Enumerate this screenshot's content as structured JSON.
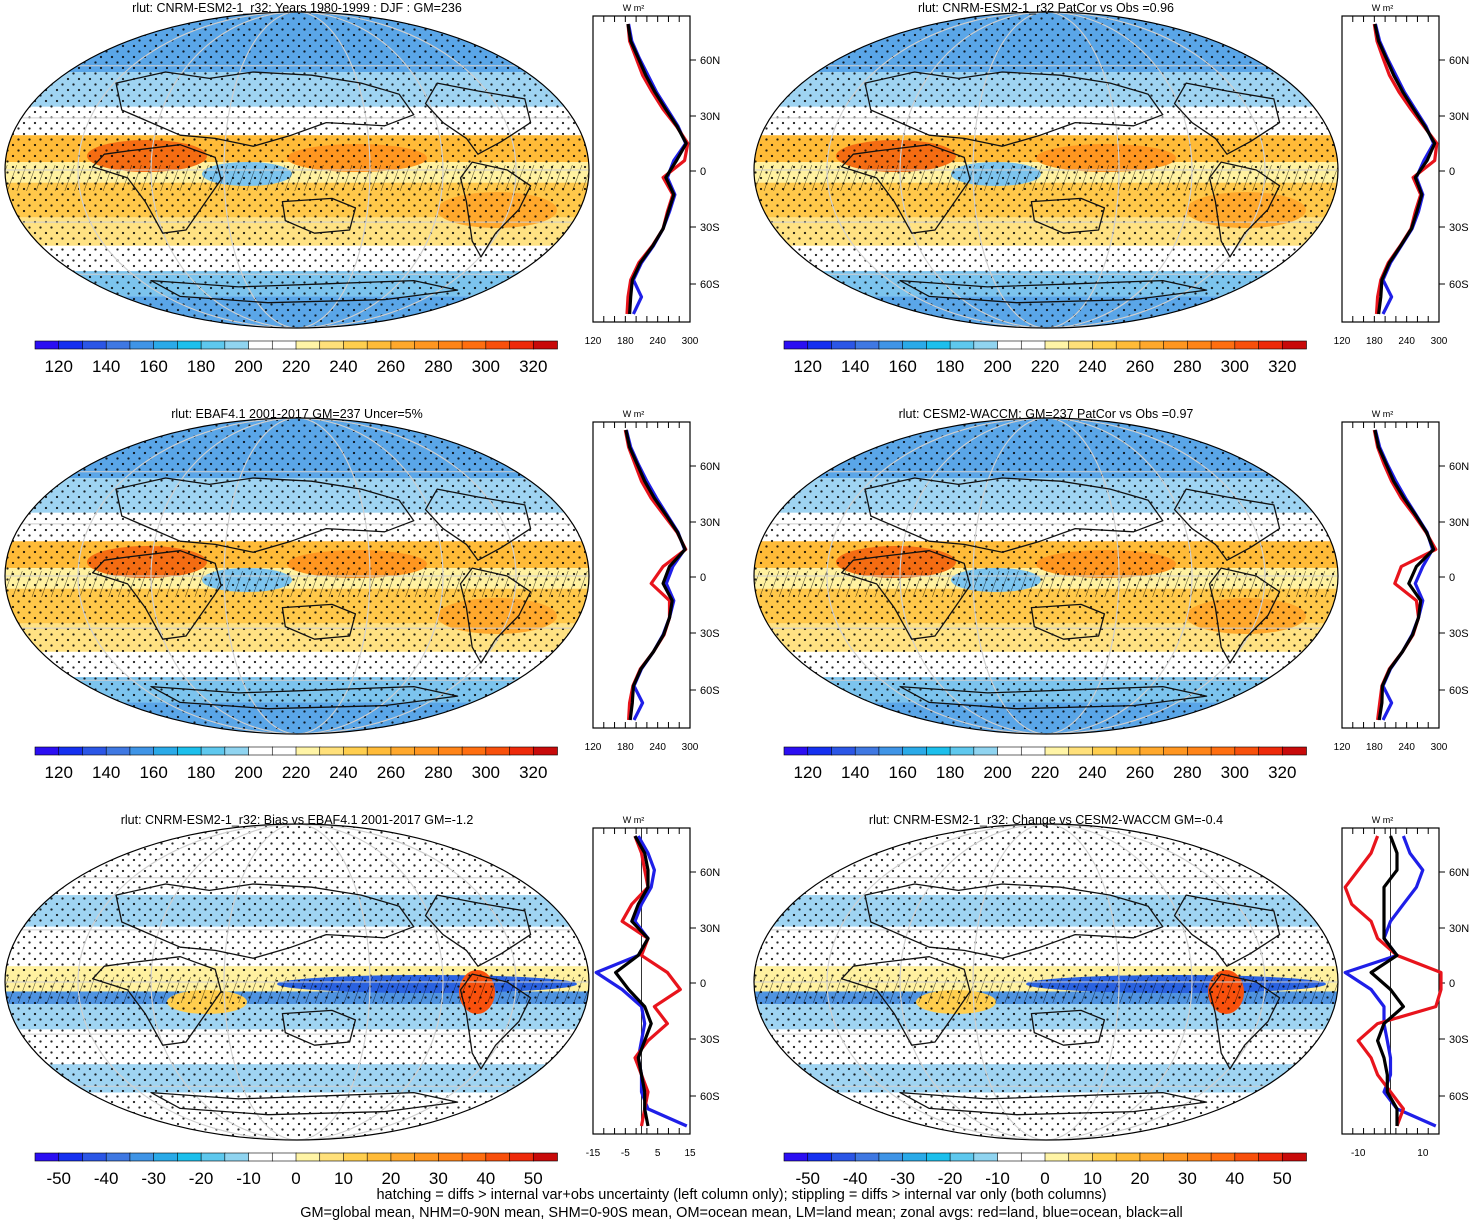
{
  "footer": {
    "line1": "hatching = diffs > internal var+obs uncertainty (left column only); stippling = diffs > internal var only (both columns)",
    "line2": "GM=global mean, NHM=0-90N mean, SHM=0-90S mean, OM=ocean mean, LM=land mean; zonal avgs: red=land, blue=ocean, black=all"
  },
  "units_label": "W m²",
  "lat_ticks": [
    "60N",
    "30N",
    "0",
    "30S",
    "60S"
  ],
  "colors": {
    "land": "#e8141c",
    "ocean": "#1f1fe8",
    "all": "#000000",
    "stipple": "#000000",
    "coast": "#111111"
  },
  "abs_palette": [
    "#2b0ef2",
    "#1530f0",
    "#2b56e6",
    "#3f78e2",
    "#3f94e6",
    "#2aaae8",
    "#1cbfec",
    "#5ec8ee",
    "#90d4f0",
    "#ffffff",
    "#ffffff",
    "#fff4a6",
    "#ffe07a",
    "#ffce4e",
    "#ffbb38",
    "#ffa82c",
    "#ff9620",
    "#ff8418",
    "#ff6e10",
    "#f8500c",
    "#ee2a0a",
    "#c80a0a"
  ],
  "diff_palette": [
    "#2b0ef2",
    "#1530f0",
    "#2b56e6",
    "#3f78e2",
    "#3f94e6",
    "#2aaae8",
    "#1cbfec",
    "#5ec8ee",
    "#90d4f0",
    "#ffffff",
    "#ffffff",
    "#fff4a6",
    "#ffe07a",
    "#ffce4e",
    "#ffbb38",
    "#ffa82c",
    "#ff9620",
    "#ff8418",
    "#ff6e10",
    "#f8500c",
    "#ee2a0a",
    "#c80a0a"
  ],
  "chart_data": [
    {
      "type": "map",
      "title": "rlut: CNRM-ESM2-1_r32: Years 1980-1999 : DJF : GM=236",
      "kind": "abs",
      "colorbar_labels": [
        "120",
        "140",
        "160",
        "180",
        "200",
        "220",
        "240",
        "260",
        "280",
        "300",
        "320"
      ],
      "zonal": {
        "type": "line",
        "xticks": [
          "120",
          "180",
          "240",
          "300"
        ],
        "xlim": [
          120,
          300
        ],
        "series": [
          {
            "name": "land",
            "values": [
              185,
              188,
              200,
              212,
              230,
              250,
              275,
              296,
              290,
              250,
              268,
              258,
              250,
              230,
              205,
              190,
              185,
              183
            ]
          },
          {
            "name": "ocean",
            "values": [
              186,
              192,
              206,
              222,
              238,
              258,
              278,
              292,
              270,
              258,
              272,
              262,
              250,
              232,
              210,
              195,
              210,
              195
            ]
          },
          {
            "name": "all",
            "values": [
              185,
              190,
              204,
              218,
              235,
              255,
              276,
              293,
              275,
              255,
              270,
              260,
              250,
              231,
              208,
              193,
              190,
              188
            ]
          }
        ]
      }
    },
    {
      "type": "map",
      "title": "rlut: CNRM-ESM2-1_r32 PatCor vs Obs =0.96",
      "kind": "abs",
      "colorbar_labels": [
        "120",
        "140",
        "160",
        "180",
        "200",
        "220",
        "240",
        "260",
        "280",
        "300",
        "320"
      ],
      "zonal": {
        "type": "line",
        "xticks": [
          "120",
          "180",
          "240",
          "300"
        ],
        "xlim": [
          120,
          300
        ],
        "series": [
          {
            "name": "land",
            "values": [
              180,
              185,
              196,
              208,
              226,
              248,
              272,
              296,
              292,
              252,
              266,
              256,
              248,
              228,
              206,
              192,
              186,
              184
            ]
          },
          {
            "name": "ocean",
            "values": [
              182,
              190,
              204,
              220,
              236,
              256,
              276,
              290,
              272,
              258,
              270,
              262,
              250,
              230,
              210,
              196,
              212,
              196
            ]
          },
          {
            "name": "all",
            "values": [
              181,
              188,
              202,
              216,
              233,
              253,
              274,
              292,
              278,
              256,
              268,
              259,
              249,
              229,
              208,
              194,
              192,
              188
            ]
          }
        ]
      }
    },
    {
      "type": "map",
      "title": "rlut: EBAF4.1 2001-2017 GM=237 Uncer=5%",
      "kind": "abs",
      "colorbar_labels": [
        "120",
        "140",
        "160",
        "180",
        "200",
        "220",
        "240",
        "260",
        "280",
        "300",
        "320"
      ],
      "zonal": {
        "type": "line",
        "xticks": [
          "120",
          "180",
          "240",
          "300"
        ],
        "xlim": [
          120,
          300
        ],
        "series": [
          {
            "name": "land",
            "values": [
              180,
              186,
              198,
              210,
              228,
              252,
              276,
              292,
              250,
              228,
              262,
              262,
              252,
              232,
              208,
              194,
              188,
              186
            ]
          },
          {
            "name": "ocean",
            "values": [
              182,
              190,
              204,
              220,
              238,
              258,
              278,
              290,
              268,
              256,
              270,
              262,
              250,
              232,
              210,
              196,
              212,
              196
            ]
          },
          {
            "name": "all",
            "values": [
              181,
              188,
              202,
              216,
              234,
              256,
              277,
              291,
              262,
              250,
              267,
              262,
              251,
              232,
              209,
              195,
              193,
              189
            ]
          }
        ]
      }
    },
    {
      "type": "map",
      "title": "rlut: CESM2-WACCM: GM=237 PatCor vs Obs =0.97",
      "kind": "abs",
      "colorbar_labels": [
        "120",
        "140",
        "160",
        "180",
        "200",
        "220",
        "240",
        "260",
        "280",
        "300",
        "320"
      ],
      "zonal": {
        "type": "line",
        "xticks": [
          "120",
          "180",
          "240",
          "300"
        ],
        "xlim": [
          120,
          300
        ],
        "series": [
          {
            "name": "land",
            "values": [
              180,
              186,
              198,
              212,
              230,
              254,
              276,
              294,
              230,
              218,
              258,
              262,
              252,
              232,
              208,
              194,
              190,
              186
            ]
          },
          {
            "name": "ocean",
            "values": [
              182,
              190,
              204,
              220,
              238,
              258,
              278,
              288,
              270,
              256,
              270,
              262,
              250,
              232,
              210,
              196,
              212,
              196
            ]
          },
          {
            "name": "all",
            "values": [
              181,
              188,
              202,
              216,
              235,
              257,
              277,
              290,
              258,
              244,
              266,
              262,
              251,
              232,
              209,
              195,
              194,
              189
            ]
          }
        ]
      }
    },
    {
      "type": "map",
      "title": "rlut: CNRM-ESM2-1_r32: Bias vs EBAF4.1 2001-2017 GM=-1.2",
      "kind": "diff",
      "colorbar_labels": [
        "-50",
        "-40",
        "-30",
        "-20",
        "-10",
        "0",
        "10",
        "20",
        "30",
        "40",
        "50"
      ],
      "zonal": {
        "type": "line",
        "xticks": [
          "-15",
          "-5",
          "5",
          "15"
        ],
        "xlim": [
          -15,
          15
        ],
        "series": [
          {
            "name": "land",
            "values": [
              -2,
              0,
              1,
              2,
              -3,
              -6,
              2,
              0,
              8,
              12,
              4,
              8,
              2,
              -2,
              0,
              2,
              1,
              0
            ]
          },
          {
            "name": "ocean",
            "values": [
              -1,
              2,
              4,
              3,
              0,
              -2,
              2,
              -1,
              -14,
              -6,
              0,
              1,
              0,
              -1,
              0,
              0,
              2,
              14
            ]
          },
          {
            "name": "all",
            "values": [
              -2,
              1,
              2,
              2,
              -1,
              -3,
              2,
              -1,
              -8,
              -4,
              1,
              3,
              1,
              -1,
              0,
              1,
              1,
              2
            ]
          }
        ]
      }
    },
    {
      "type": "map",
      "title": "rlut: CNRM-ESM2-1_r32: Change vs CESM2-WACCM GM=-0.4",
      "kind": "diff",
      "colorbar_labels": [
        "-50",
        "-40",
        "-30",
        "-20",
        "-10",
        "0",
        "10",
        "20",
        "30",
        "40",
        "50"
      ],
      "zonal": {
        "type": "line",
        "xticks": [
          "-10",
          "10"
        ],
        "xlim": [
          -15,
          15
        ],
        "series": [
          {
            "name": "land",
            "values": [
              -4,
              -6,
              -10,
              -14,
              -12,
              -6,
              -4,
              2,
              16,
              18,
              14,
              -4,
              -10,
              -6,
              -4,
              0,
              4,
              2
            ]
          },
          {
            "name": "ocean",
            "values": [
              4,
              6,
              10,
              8,
              4,
              0,
              -2,
              2,
              -14,
              -6,
              -2,
              -2,
              -1,
              0,
              0,
              -2,
              2,
              14
            ]
          },
          {
            "name": "all",
            "values": [
              0,
              2,
              2,
              -2,
              -2,
              -2,
              -2,
              2,
              -6,
              0,
              4,
              -2,
              -4,
              -2,
              -1,
              -1,
              2,
              2
            ]
          }
        ]
      }
    }
  ]
}
